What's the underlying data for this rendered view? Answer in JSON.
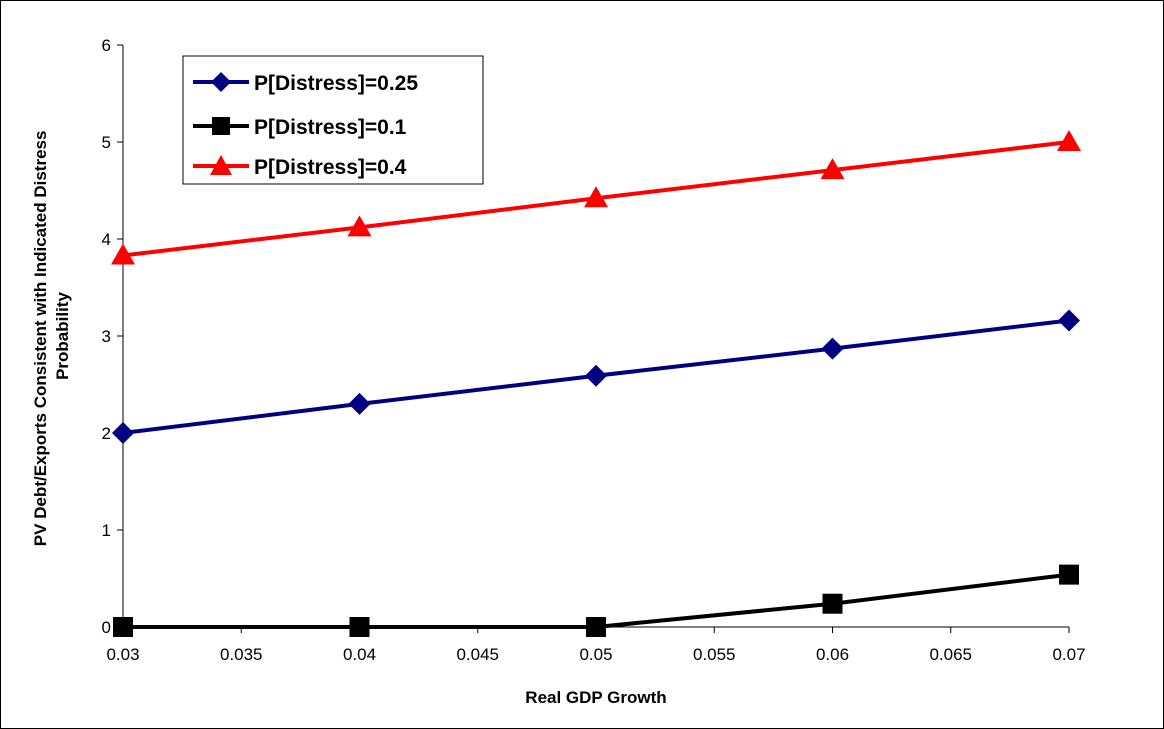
{
  "chart_data": {
    "type": "line",
    "x": [
      0.03,
      0.04,
      0.05,
      0.06,
      0.07
    ],
    "xlabel": "Real GDP Growth",
    "ylabel_lines": [
      "PV Debt/Exports Consistent with Indicated Distress",
      "Probability"
    ],
    "xlim": [
      0.03,
      0.07
    ],
    "ylim": [
      0,
      6
    ],
    "x_ticks": [
      "0.03",
      "0.035",
      "0.04",
      "0.045",
      "0.05",
      "0.055",
      "0.06",
      "0.065",
      "0.07"
    ],
    "y_ticks": [
      "0",
      "1",
      "2",
      "3",
      "4",
      "5",
      "6"
    ],
    "grid": false,
    "legend_position": "top-left",
    "series": [
      {
        "name": "P[Distress]=0.25",
        "values": [
          2.0,
          2.3,
          2.59,
          2.87,
          3.16
        ],
        "color": "#000080",
        "marker": "diamond"
      },
      {
        "name": "P[Distress]=0.1",
        "values": [
          0.0,
          0.0,
          0.0,
          0.24,
          0.54
        ],
        "color": "#000000",
        "marker": "square"
      },
      {
        "name": "P[Distress]=0.4",
        "values": [
          3.83,
          4.12,
          4.42,
          4.71,
          5.0
        ],
        "color": "#ff0000",
        "marker": "triangle"
      }
    ]
  }
}
